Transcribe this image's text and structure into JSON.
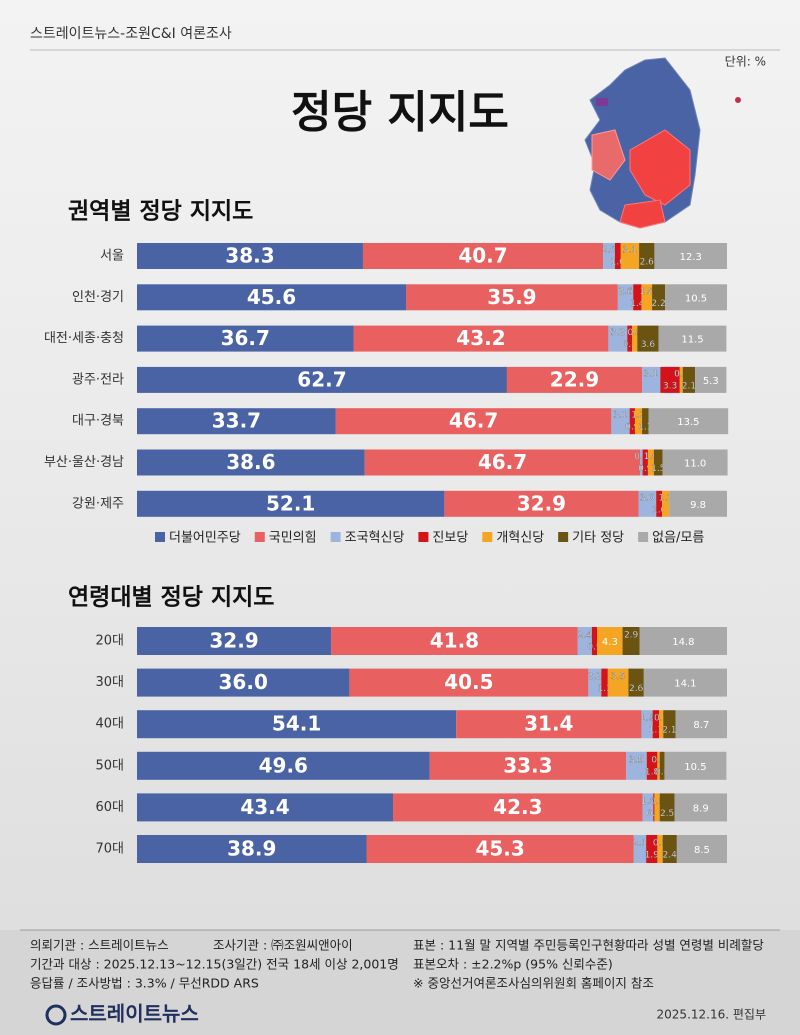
{
  "header": "스트레이트뉴스-조원C&I 여론조사",
  "unit": "단위: %",
  "title": "정당 지지도",
  "chart_data": [
    {
      "type": "stacked-bar-horizontal",
      "title": "권역별 정당 지지도",
      "categories": [
        "서울",
        "인천·경기",
        "대전·세종·충청",
        "광주·전라",
        "대구·경북",
        "부산·울산·경남",
        "강원·제주"
      ],
      "xlim": [
        0,
        100
      ],
      "series": [
        {
          "name": "더불어민주당",
          "color": "#4a63a5",
          "values": [
            38.3,
            45.6,
            36.7,
            62.7,
            33.7,
            38.6,
            52.1
          ]
        },
        {
          "name": "국민의힘",
          "color": "#e8605f",
          "values": [
            40.7,
            35.9,
            43.2,
            22.9,
            46.7,
            46.7,
            32.9
          ]
        },
        {
          "name": "조국혁신당",
          "color": "#9cb4de",
          "values": [
            2.0,
            2.6,
            3.2,
            3.1,
            3.1,
            0.4,
            3.0
          ],
          "value_labels": [
            "2.0",
            "2.6",
            "3.2",
            "3.1",
            "3.1",
            "0.4",
            "3.0"
          ]
        },
        {
          "name": "진보당",
          "color": "#d4121a",
          "values": [
            1.0,
            1.4,
            0.8,
            3.3,
            0.9,
            0.9,
            1.0
          ],
          "value_labels": [
            "1.0",
            "1.4",
            "0.8",
            "3.3",
            "0.9",
            "0.9",
            "1.0"
          ]
        },
        {
          "name": "개혁신당",
          "color": "#f5a524",
          "values": [
            3.1,
            1.8,
            0.9,
            0.5,
            1.2,
            1.0,
            1.2
          ],
          "value_labels": [
            "3.1",
            "1.8",
            "0.9",
            "0.5",
            "1.2",
            "1.0",
            "1.2"
          ]
        },
        {
          "name": "기타 정당",
          "color": "#6b5412",
          "values": [
            2.6,
            2.2,
            3.6,
            2.1,
            1.1,
            1.5,
            null
          ]
        },
        {
          "name": "없음/모름",
          "color": "#a9a9a9",
          "values": [
            12.3,
            10.5,
            11.5,
            5.3,
            13.5,
            11.0,
            9.8
          ],
          "value_labels": [
            "12.3",
            "10.5",
            "11.5",
            "5.3",
            "13.5",
            "11.0",
            "9.8"
          ]
        }
      ]
    },
    {
      "type": "stacked-bar-horizontal",
      "title": "연령대별 정당 지지도",
      "categories": [
        "20대",
        "30대",
        "40대",
        "50대",
        "60대",
        "70대"
      ],
      "xlim": [
        0,
        100
      ],
      "series": [
        {
          "color": "#4a63a5",
          "values": [
            32.9,
            36.0,
            54.1,
            49.6,
            43.4,
            38.9
          ],
          "value_labels": [
            "32.9",
            "36.0",
            "54.1",
            "49.6",
            "43.4",
            "38.9"
          ]
        },
        {
          "color": "#e8605f",
          "values": [
            41.8,
            40.5,
            31.4,
            33.3,
            42.3,
            45.3
          ]
        },
        {
          "color": "#9cb4de",
          "values": [
            2.4,
            2.2,
            1.9,
            3.5,
            1.8,
            2.1
          ]
        },
        {
          "color": "#d4121a",
          "values": [
            0.9,
            1.1,
            1.1,
            1.8,
            0.2,
            1.9
          ]
        },
        {
          "color": "#f5a524",
          "values": [
            4.3,
            3.5,
            0.7,
            0.4,
            0.9,
            0.9
          ]
        },
        {
          "color": "#6b5412",
          "values": [
            2.9,
            2.6,
            2.1,
            0.8,
            2.5,
            2.4
          ]
        },
        {
          "color": "#a9a9a9",
          "values": [
            14.8,
            14.1,
            8.7,
            10.5,
            8.9,
            8.5
          ]
        }
      ]
    }
  ],
  "footer": {
    "lines": [
      [
        "의뢰기관 : 스트레이트뉴스",
        "조사기관 : ㈜조원씨앤아이",
        "표본 : 11월 말 지역별 주민등록인구현황따라 성별 연령별 비례할당"
      ],
      [
        "기간과 대상 : 2025.12.13~12.15(3일간)  전국 18세 이상  2,001명",
        "표본오차 : ±2.2%p (95% 신뢰수준)"
      ],
      [
        "응답률 / 조사방법 : 3.3% / 무선RDD ARS",
        "※ 중앙선거여론조사심의위원회 홈페이지 참조"
      ]
    ],
    "logo": "스트레이트뉴스",
    "date": "2025.12.16. 편집부"
  }
}
